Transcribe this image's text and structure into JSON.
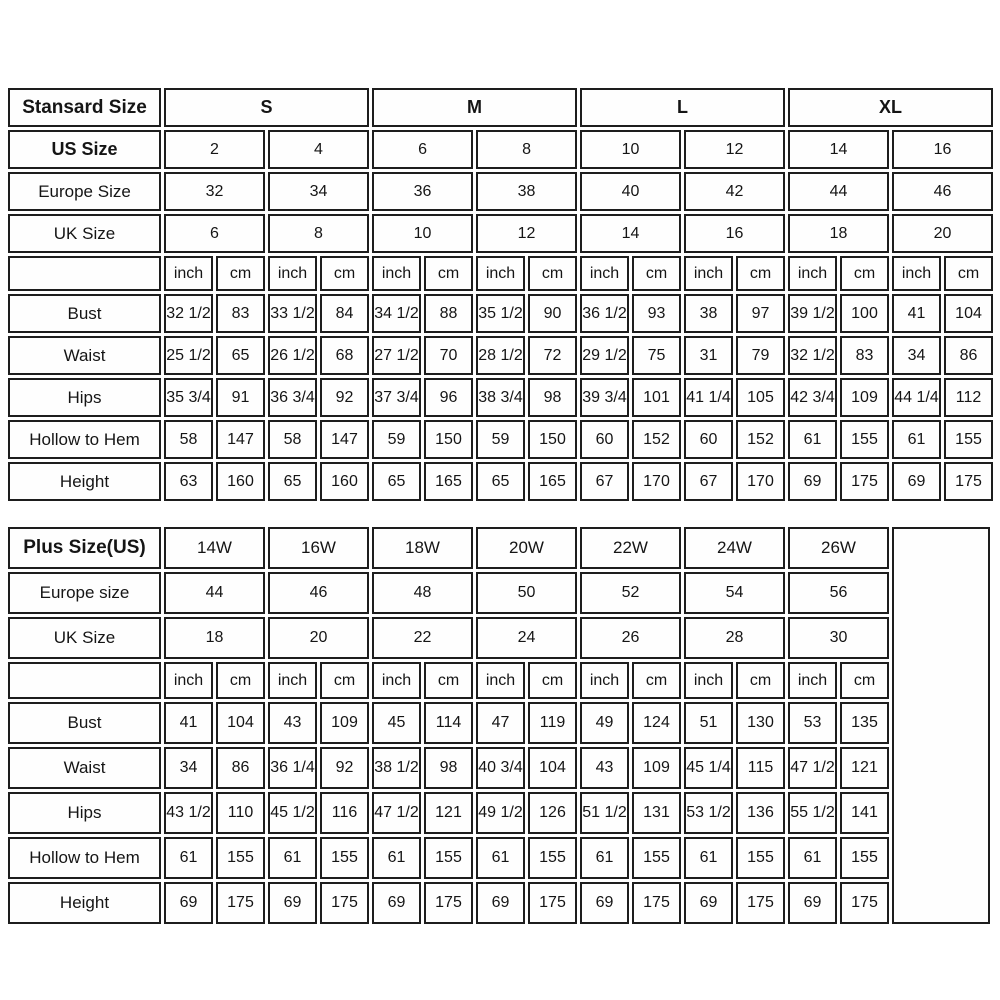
{
  "page": {
    "background": "#ffffff",
    "border_color": "#1d1d1d",
    "text_color": "#151515"
  },
  "standard_table": {
    "title": "Stansard Size",
    "size_groups": [
      "S",
      "M",
      "L",
      "XL"
    ],
    "header_rows": [
      {
        "label": "US Size",
        "bold": true,
        "values": [
          "2",
          "4",
          "6",
          "8",
          "10",
          "12",
          "14",
          "16"
        ]
      },
      {
        "label": "Europe Size",
        "bold": false,
        "values": [
          "32",
          "34",
          "36",
          "38",
          "40",
          "42",
          "44",
          "46"
        ]
      },
      {
        "label": "UK Size",
        "bold": false,
        "values": [
          "6",
          "8",
          "10",
          "12",
          "14",
          "16",
          "18",
          "20"
        ]
      }
    ],
    "units": [
      "inch",
      "cm",
      "inch",
      "cm",
      "inch",
      "cm",
      "inch",
      "cm",
      "inch",
      "cm",
      "inch",
      "cm",
      "inch",
      "cm",
      "inch",
      "cm"
    ],
    "measure_rows": [
      {
        "label": "Bust",
        "values": [
          "32 1/2",
          "83",
          "33 1/2",
          "84",
          "34 1/2",
          "88",
          "35 1/2",
          "90",
          "36 1/2",
          "93",
          "38",
          "97",
          "39 1/2",
          "100",
          "41",
          "104"
        ]
      },
      {
        "label": "Waist",
        "values": [
          "25 1/2",
          "65",
          "26 1/2",
          "68",
          "27 1/2",
          "70",
          "28 1/2",
          "72",
          "29 1/2",
          "75",
          "31",
          "79",
          "32 1/2",
          "83",
          "34",
          "86"
        ]
      },
      {
        "label": "Hips",
        "values": [
          "35 3/4",
          "91",
          "36 3/4",
          "92",
          "37 3/4",
          "96",
          "38 3/4",
          "98",
          "39 3/4",
          "101",
          "41 1/4",
          "105",
          "42 3/4",
          "109",
          "44 1/4",
          "112"
        ]
      },
      {
        "label": "Hollow to Hem",
        "values": [
          "58",
          "147",
          "58",
          "147",
          "59",
          "150",
          "59",
          "150",
          "60",
          "152",
          "60",
          "152",
          "61",
          "155",
          "61",
          "155"
        ]
      },
      {
        "label": "Height",
        "values": [
          "63",
          "160",
          "65",
          "160",
          "65",
          "165",
          "65",
          "165",
          "67",
          "170",
          "67",
          "170",
          "69",
          "175",
          "69",
          "175"
        ]
      }
    ],
    "has_tail_empty_column": false
  },
  "plus_table": {
    "title": "Plus Size(US)",
    "size_groups": [
      "14W",
      "16W",
      "18W",
      "20W",
      "22W",
      "24W",
      "26W"
    ],
    "header_rows": [
      {
        "label": "Europe size",
        "bold": false,
        "values": [
          "44",
          "46",
          "48",
          "50",
          "52",
          "54",
          "56"
        ]
      },
      {
        "label": "UK Size",
        "bold": false,
        "values": [
          "18",
          "20",
          "22",
          "24",
          "26",
          "28",
          "30"
        ]
      }
    ],
    "units": [
      "inch",
      "cm",
      "inch",
      "cm",
      "inch",
      "cm",
      "inch",
      "cm",
      "inch",
      "cm",
      "inch",
      "cm",
      "inch",
      "cm"
    ],
    "measure_rows": [
      {
        "label": "Bust",
        "values": [
          "41",
          "104",
          "43",
          "109",
          "45",
          "114",
          "47",
          "119",
          "49",
          "124",
          "51",
          "130",
          "53",
          "135"
        ]
      },
      {
        "label": "Waist",
        "values": [
          "34",
          "86",
          "36 1/4",
          "92",
          "38 1/2",
          "98",
          "40 3/4",
          "104",
          "43",
          "109",
          "45 1/4",
          "115",
          "47 1/2",
          "121"
        ]
      },
      {
        "label": "Hips",
        "values": [
          "43 1/2",
          "110",
          "45 1/2",
          "116",
          "47 1/2",
          "121",
          "49 1/2",
          "126",
          "51 1/2",
          "131",
          "53 1/2",
          "136",
          "55 1/2",
          "141"
        ]
      },
      {
        "label": "Hollow to Hem",
        "values": [
          "61",
          "155",
          "61",
          "155",
          "61",
          "155",
          "61",
          "155",
          "61",
          "155",
          "61",
          "155",
          "61",
          "155"
        ]
      },
      {
        "label": "Height",
        "values": [
          "69",
          "175",
          "69",
          "175",
          "69",
          "175",
          "69",
          "175",
          "69",
          "175",
          "69",
          "175",
          "69",
          "175"
        ]
      }
    ],
    "has_tail_empty_column": true
  }
}
